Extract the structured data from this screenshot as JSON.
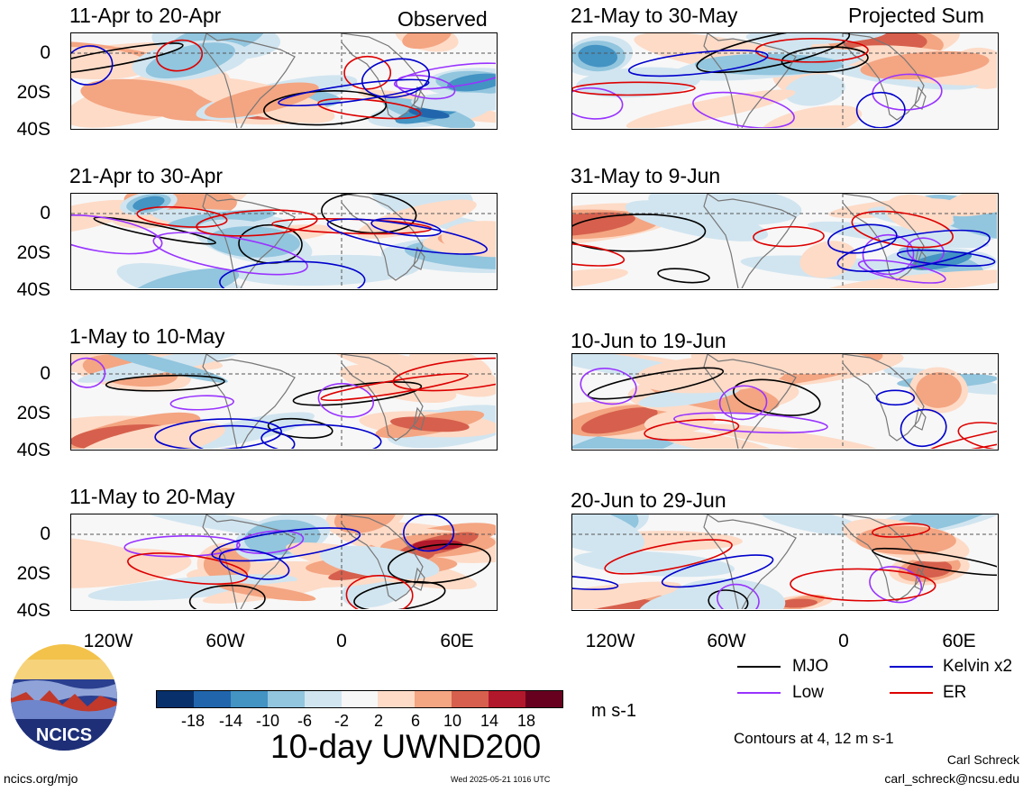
{
  "figure": {
    "main_title": "10-day UWND200",
    "units": "m s-1",
    "contour_note": "Contours at 4, 12 m s-1",
    "author": "Carl Schreck",
    "email": "carl_schreck@ncsu.edu",
    "site": "ncics.org/mjo",
    "timestamp": "Wed 2025-05-21 1016 UTC",
    "logo_text": "NCICS"
  },
  "left_column_label": "Observed",
  "right_column_label": "Projected Sum",
  "panels_left": [
    {
      "title": "11-Apr to 20-Apr"
    },
    {
      "title": "21-Apr to 30-Apr"
    },
    {
      "title": "1-May to 10-May"
    },
    {
      "title": "11-May to 20-May"
    }
  ],
  "panels_right": [
    {
      "title": "21-May to 30-May"
    },
    {
      "title": "31-May to 9-Jun"
    },
    {
      "title": "10-Jun to 19-Jun"
    },
    {
      "title": "20-Jun to 29-Jun"
    }
  ],
  "y_ticks": [
    "0",
    "20S",
    "40S"
  ],
  "x_ticks": [
    "120W",
    "60W",
    "0",
    "60E"
  ],
  "legend": [
    {
      "label": "MJO",
      "color": "#000000"
    },
    {
      "label": "Kelvin x2",
      "color": "#0000cc"
    },
    {
      "label": "Low",
      "color": "#9933ff"
    },
    {
      "label": "ER",
      "color": "#dd0000"
    }
  ],
  "colorbar": {
    "labels": [
      "-18",
      "-14",
      "-10",
      "-6",
      "-2",
      "2",
      "6",
      "10",
      "14",
      "18"
    ],
    "colors": [
      "#08306b",
      "#2166ac",
      "#4393c3",
      "#92c5de",
      "#d1e5f0",
      "#f7f7f7",
      "#fddbc7",
      "#f4a582",
      "#d6604d",
      "#b2182b",
      "#67001f"
    ]
  }
}
